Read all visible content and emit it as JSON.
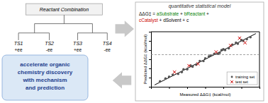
{
  "chart_data": {
    "type": "scatter",
    "title": "quantitative statistical model",
    "xlabel": "Measured ΔΔG‡ (kcal/mol)",
    "ylabel": "Predicted ΔΔG‡ (kcal/mol)",
    "xlim": [
      -3.0,
      3.0
    ],
    "ylim": [
      -3.0,
      3.0
    ],
    "xticks": [
      -3,
      -2,
      -1,
      0,
      1,
      2,
      3
    ],
    "yticks": [
      -3,
      -2,
      -1,
      0,
      1,
      2,
      3
    ],
    "tick_labels": false,
    "grid": false,
    "legend": "lower right",
    "series": [
      {
        "name": "training set",
        "type": "scatter",
        "marker": "circle",
        "color": "#555555",
        "x": [
          -2.5,
          -2.2,
          -1.8,
          -1.5,
          -1.2,
          -1.0,
          -0.8,
          -0.5,
          -0.3,
          0.0,
          0.2,
          0.5,
          0.8,
          1.0,
          1.3,
          1.5,
          1.8,
          2.0,
          2.3,
          2.5,
          -2.0,
          -0.7,
          0.3,
          1.1,
          1.7,
          -1.3,
          0.7,
          2.1,
          -0.1,
          0.9
        ],
        "values": [
          -2.4,
          -2.1,
          -1.7,
          -1.6,
          -1.1,
          -1.1,
          -0.7,
          -0.6,
          -0.2,
          0.1,
          0.3,
          0.6,
          0.7,
          1.1,
          1.2,
          1.6,
          1.7,
          2.1,
          2.2,
          2.4,
          -1.9,
          -0.8,
          0.4,
          1.0,
          1.8,
          -1.4,
          0.6,
          2.0,
          -0.2,
          1.0
        ]
      },
      {
        "name": "test set",
        "type": "scatter",
        "marker": "x",
        "color": "#cc0000",
        "x": [
          -1.7,
          -0.4,
          0.6,
          1.4,
          2.2,
          -0.9,
          1.9
        ],
        "values": [
          -1.4,
          -0.5,
          0.8,
          1.5,
          1.8,
          -0.7,
          2.3
        ]
      },
      {
        "type": "line",
        "line_style": "solid",
        "color": "#000000",
        "x": [
          -2.8,
          2.8
        ],
        "values": [
          -2.8,
          2.8
        ]
      },
      {
        "type": "hline",
        "line_style": "dashed",
        "color": "#888888",
        "values": [
          0.5
        ]
      }
    ],
    "annotations": {
      "tree_title": "Reactant Combination",
      "tree_nodes": [
        "TS1",
        "TS2",
        "TS3",
        "TS4"
      ],
      "tree_ee": [
        "+ee",
        "-ee",
        "+ee",
        "-ee"
      ],
      "box_text": [
        "accelerate organic",
        "chemistry discovery",
        "with mechanism",
        "and prediction"
      ],
      "equation": [
        [
          {
            "text": "ΔΔG‡",
            "color": "#000000"
          },
          {
            "text": " = ",
            "color": "#000000"
          },
          {
            "text": "a",
            "color": "#008000"
          },
          {
            "text": "Substrate",
            "color": "#008000"
          },
          {
            "text": " + ",
            "color": "#000000"
          },
          {
            "text": "b",
            "color": "#008000"
          },
          {
            "text": "Reactant",
            "color": "#008000"
          },
          {
            "text": " +",
            "color": "#000000"
          }
        ],
        [
          {
            "text": "c",
            "color": "#cc0000"
          },
          {
            "text": "Catalyst",
            "color": "#cc0000"
          },
          {
            "text": " + ",
            "color": "#000000"
          },
          {
            "text": "d",
            "color": "#000000"
          },
          {
            "text": "Solvent",
            "color": "#000000"
          },
          {
            "text": " + c",
            "color": "#000000"
          }
        ]
      ]
    }
  }
}
